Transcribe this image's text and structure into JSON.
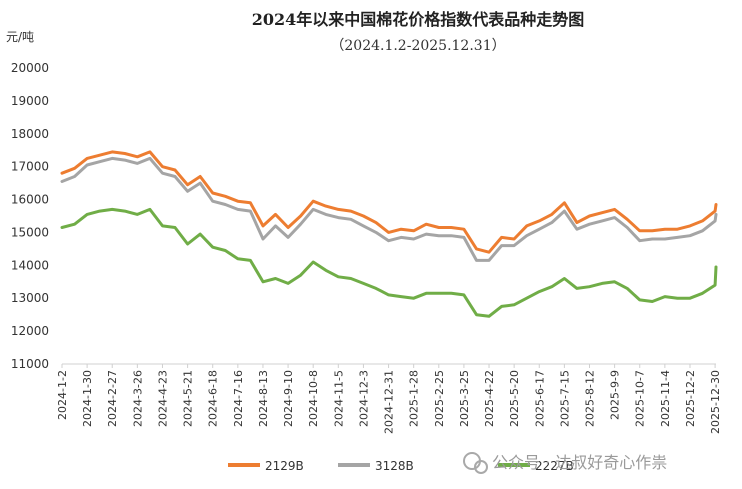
{
  "chart_data": {
    "type": "line",
    "title": "2024年以来中国棉花价格指数代表品种走势图",
    "subtitle": "（2024.1.2-2025.12.31）",
    "ylabel": "元/吨",
    "ylim": [
      11000,
      20000
    ],
    "yticks": [
      11000,
      12000,
      13000,
      14000,
      15000,
      16000,
      17000,
      18000,
      19000,
      20000
    ],
    "grid": false,
    "legend_position": "bottom",
    "x_tick_labels": [
      "2024-1-2",
      "2024-1-30",
      "2024-2-27",
      "2024-3-26",
      "2024-4-23",
      "2024-5-21",
      "2024-6-18",
      "2024-7-16",
      "2024-8-13",
      "2024-9-10",
      "2024-10-8",
      "2024-11-5",
      "2024-12-3",
      "2024-12-31",
      "2025-1-28",
      "2025-2-25",
      "2025-3-25",
      "2025-4-22",
      "2025-5-20",
      "2025-6-17",
      "2025-7-15",
      "2025-8-12",
      "2025-9-9",
      "2025-10-7",
      "2025-11-4",
      "2025-12-2",
      "2025-12-30"
    ],
    "x": [
      "2024-1-2",
      "2024-1-16",
      "2024-1-30",
      "2024-2-13",
      "2024-2-27",
      "2024-3-12",
      "2024-3-26",
      "2024-4-9",
      "2024-4-23",
      "2024-5-7",
      "2024-5-21",
      "2024-6-4",
      "2024-6-18",
      "2024-7-2",
      "2024-7-16",
      "2024-7-30",
      "2024-8-13",
      "2024-8-27",
      "2024-9-10",
      "2024-9-24",
      "2024-10-8",
      "2024-10-22",
      "2024-11-5",
      "2024-11-19",
      "2024-12-3",
      "2024-12-17",
      "2024-12-31",
      "2025-1-14",
      "2025-1-28",
      "2025-2-11",
      "2025-2-25",
      "2025-3-11",
      "2025-3-25",
      "2025-4-8",
      "2025-4-22",
      "2025-5-6",
      "2025-5-20",
      "2025-6-3",
      "2025-6-17",
      "2025-7-1",
      "2025-7-15",
      "2025-7-29",
      "2025-8-12",
      "2025-8-26",
      "2025-9-9",
      "2025-9-23",
      "2025-10-7",
      "2025-10-21",
      "2025-11-4",
      "2025-11-18",
      "2025-12-2",
      "2025-12-16",
      "2025-12-30",
      "2025-12-31"
    ],
    "series": [
      {
        "name": "2129B",
        "color": "#ED7D31",
        "values": [
          16800,
          16950,
          17250,
          17350,
          17450,
          17400,
          17300,
          17450,
          17000,
          16900,
          16450,
          16700,
          16200,
          16100,
          15950,
          15900,
          15200,
          15550,
          15150,
          15500,
          15950,
          15800,
          15700,
          15650,
          15500,
          15300,
          15000,
          15100,
          15050,
          15250,
          15150,
          15150,
          15100,
          14500,
          14400,
          14850,
          14800,
          15200,
          15350,
          15550,
          15900,
          15300,
          15500,
          15600,
          15700,
          15400,
          15050,
          15050,
          15100,
          15100,
          15200,
          15350,
          15650,
          15850
        ]
      },
      {
        "name": "3128B",
        "color": "#A5A5A5",
        "values": [
          16550,
          16700,
          17050,
          17150,
          17250,
          17200,
          17100,
          17250,
          16800,
          16700,
          16250,
          16500,
          15950,
          15850,
          15700,
          15650,
          14800,
          15200,
          14850,
          15250,
          15700,
          15550,
          15450,
          15400,
          15200,
          15000,
          14750,
          14850,
          14800,
          14950,
          14900,
          14900,
          14850,
          14150,
          14150,
          14600,
          14600,
          14900,
          15100,
          15300,
          15650,
          15100,
          15250,
          15350,
          15450,
          15150,
          14750,
          14800,
          14800,
          14850,
          14900,
          15050,
          15350,
          15550
        ]
      },
      {
        "name": "2227B",
        "color": "#70AD47",
        "values": [
          15150,
          15250,
          15550,
          15650,
          15700,
          15650,
          15550,
          15700,
          15200,
          15150,
          14650,
          14950,
          14550,
          14450,
          14200,
          14150,
          13500,
          13600,
          13450,
          13700,
          14100,
          13850,
          13650,
          13600,
          13450,
          13300,
          13100,
          13050,
          13000,
          13150,
          13150,
          13150,
          13100,
          12500,
          12450,
          12750,
          12800,
          13000,
          13200,
          13350,
          13600,
          13300,
          13350,
          13450,
          13500,
          13300,
          12950,
          12900,
          13050,
          13000,
          13000,
          13150,
          13400,
          13950
        ]
      }
    ]
  },
  "watermark": "公众号 · 达叔好奇心作祟"
}
